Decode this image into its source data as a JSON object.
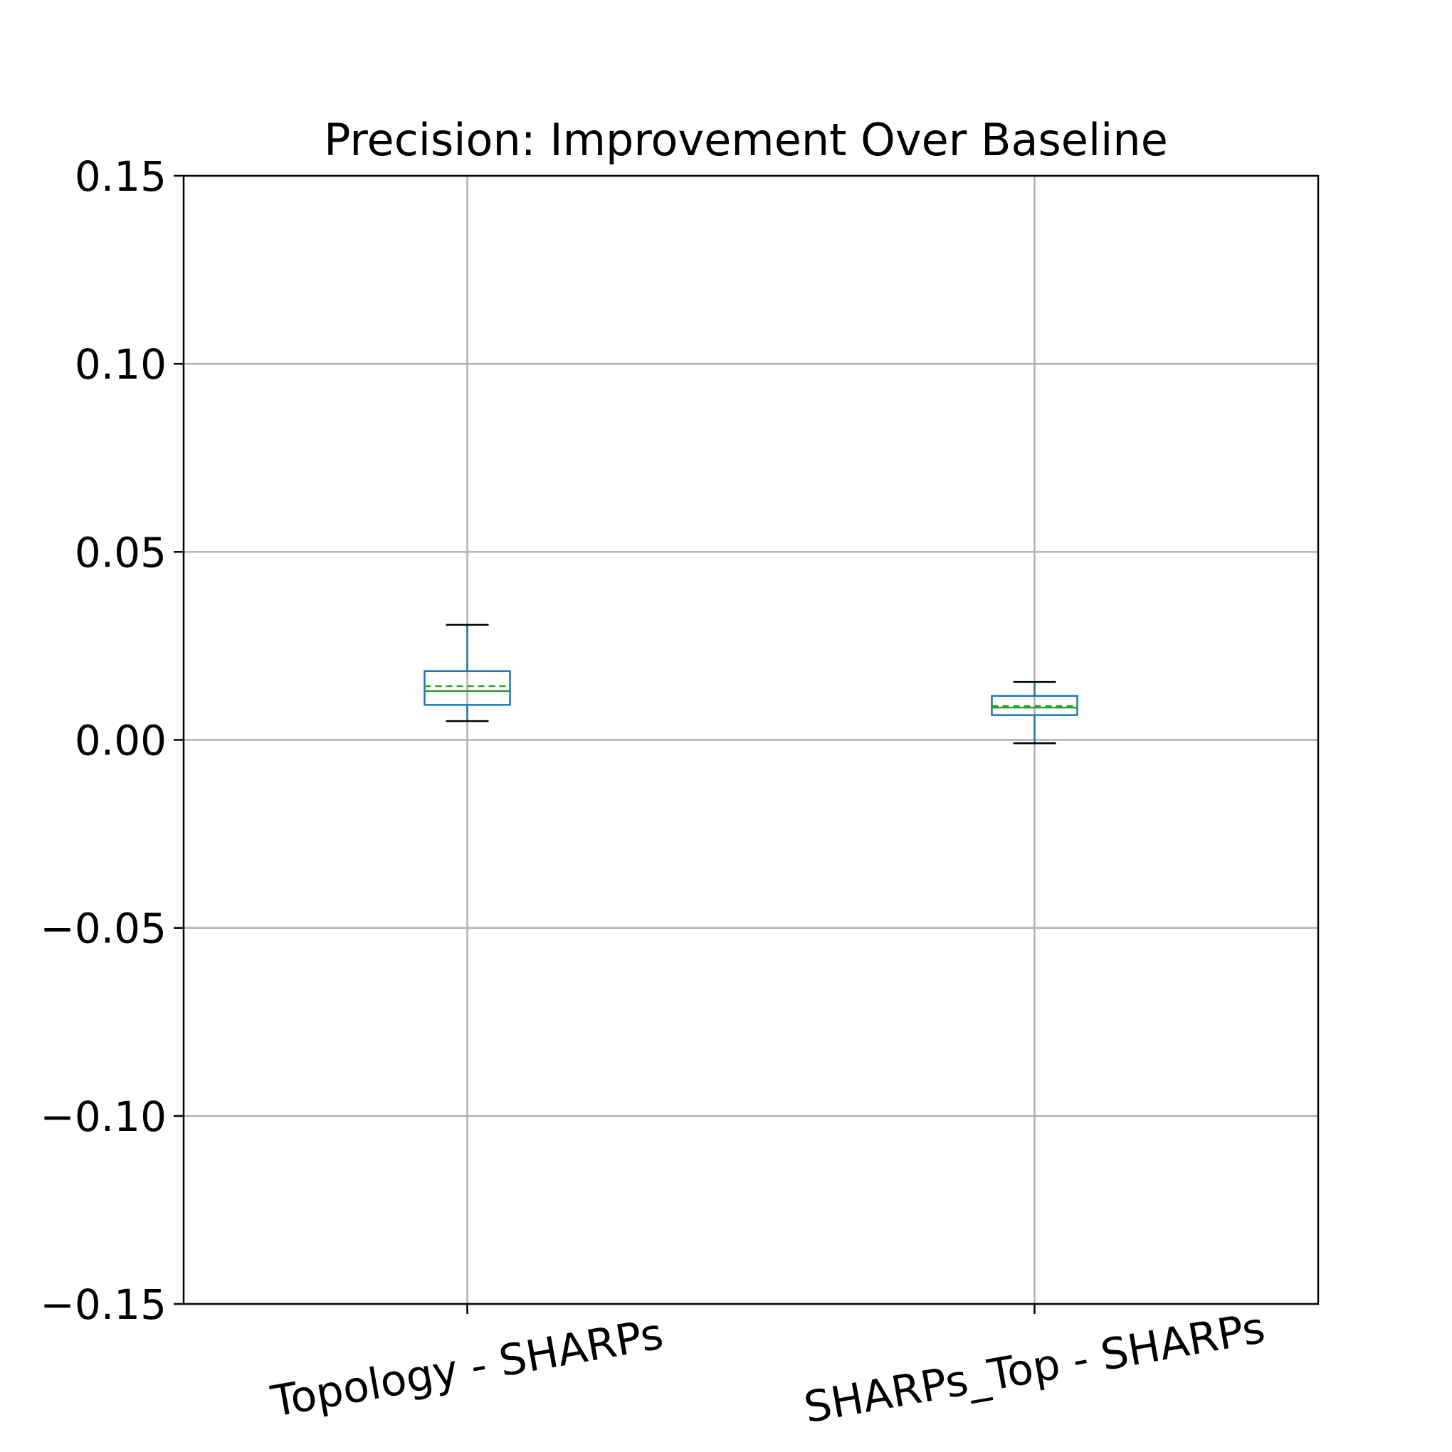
{
  "chart_data": {
    "type": "box",
    "title": "Precision: Improvement Over Baseline",
    "xlabel": "",
    "ylabel": "",
    "ylim": [
      -0.15,
      0.15
    ],
    "yticks": [
      0.15,
      0.1,
      0.05,
      0.0,
      -0.05,
      -0.1,
      -0.15
    ],
    "ytick_labels": [
      "0.15",
      "0.10",
      "0.05",
      "0.00",
      "−0.05",
      "−0.10",
      "−0.15"
    ],
    "grid": true,
    "categories": [
      "Topology - SHARPs",
      "SHARPs_Top - SHARPs"
    ],
    "boxes": [
      {
        "whisker_low": 0.005,
        "q1": 0.0093,
        "median": 0.013,
        "mean": 0.0143,
        "q3": 0.0183,
        "whisker_high": 0.0306
      },
      {
        "whisker_low": -0.0009,
        "q1": 0.0066,
        "median": 0.0086,
        "mean": 0.009,
        "q3": 0.0117,
        "whisker_high": 0.0154
      }
    ],
    "colors": {
      "box": "#1f77b4",
      "median": "#2ca02c",
      "mean": "#2ca02c",
      "cap": "#000000",
      "grid": "#b0b0b0",
      "frame": "#000000"
    }
  }
}
